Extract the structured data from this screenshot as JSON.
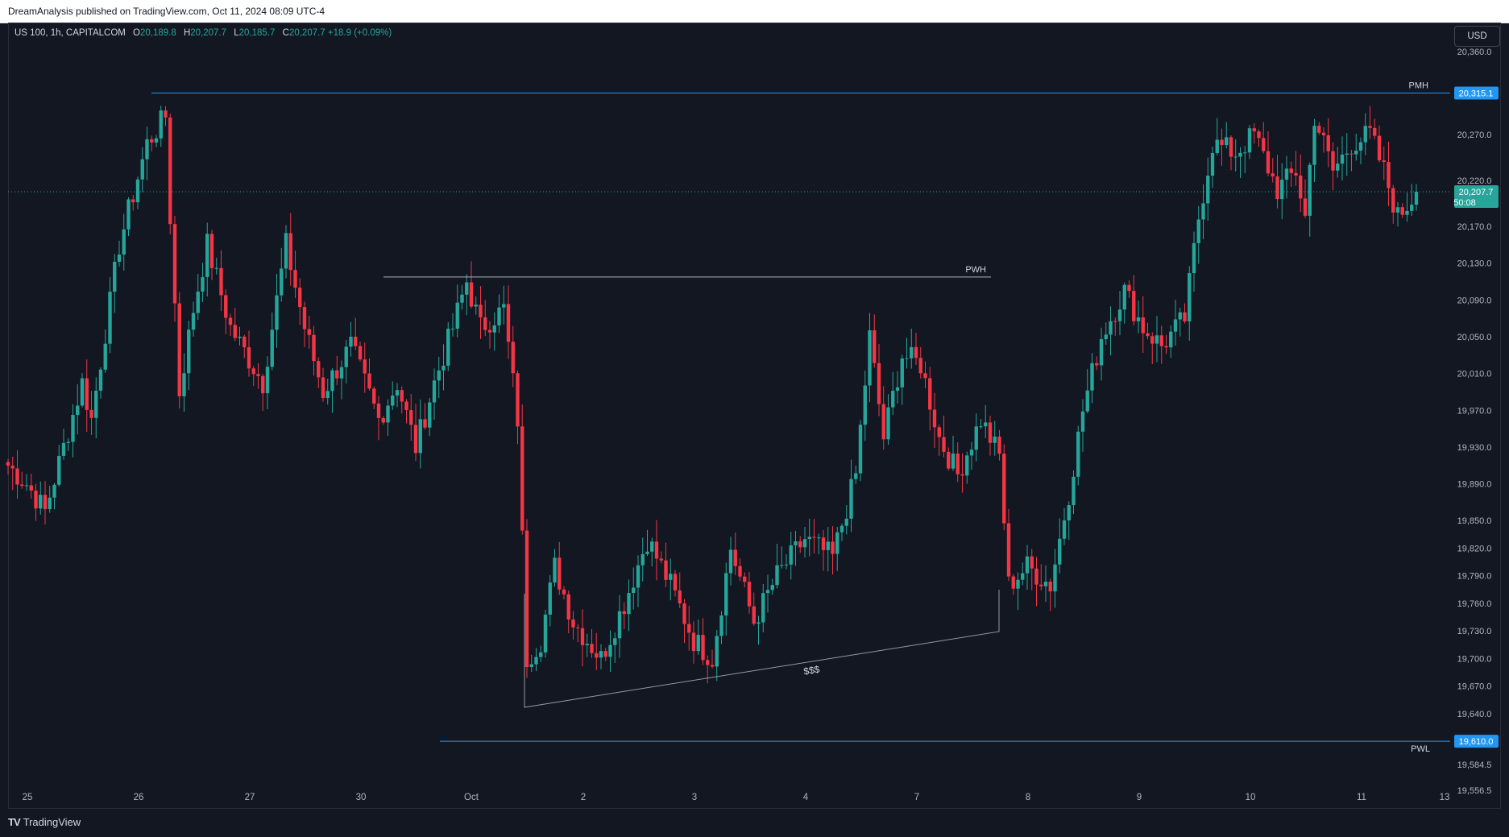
{
  "header": {
    "published": "DreamAnalysis published on TradingView.com, Oct 11, 2024 08:09 UTC-4"
  },
  "legend": {
    "symbol": "US 100, 1h, CAPITALCOM",
    "open_label": "O",
    "open": "20,189.8",
    "high_label": "H",
    "high": "20,207.7",
    "low_label": "L",
    "low": "20,185.7",
    "close_label": "C",
    "close": "20,207.7",
    "change": "+18.9 (+0.09%)"
  },
  "currency_button": "USD",
  "footer": {
    "logo_text": "TradingView",
    "logo_mark": "TV"
  },
  "colors": {
    "background": "#131722",
    "up": "#26a69a",
    "down": "#f23645",
    "level_line": "#2196f3",
    "text": "#d1d4dc"
  },
  "chart_data": {
    "type": "candlestick",
    "title": "US 100, 1h, CAPITALCOM",
    "y_range": [
      19540,
      20390
    ],
    "y_ticks": [
      "20,360.0",
      "20,270.0",
      "20,220.0",
      "20,170.0",
      "20,130.0",
      "20,090.0",
      "20,050.0",
      "20,010.0",
      "19,970.0",
      "19,930.0",
      "19,890.0",
      "19,850.0",
      "19,820.0",
      "19,790.0",
      "19,760.0",
      "19,730.0",
      "19,700.0",
      "19,670.0",
      "19,640.0",
      "19,584.5",
      "19,556.5"
    ],
    "x_labels": [
      "25",
      "26",
      "27",
      "30",
      "Oct",
      "2",
      "3",
      "4",
      "7",
      "8",
      "9",
      "10",
      "11",
      "13"
    ],
    "current_price": {
      "value": "20,207.7",
      "countdown": "50:08"
    },
    "levels": [
      {
        "label": "PMH",
        "value": "20,315.1",
        "price": 20315.1
      },
      {
        "label": "PWH",
        "price": 20115
      },
      {
        "label": "PWL",
        "value": "19,610.0",
        "price": 19610.0
      }
    ],
    "annotations": [
      {
        "text": "$$$"
      }
    ],
    "close_path": [
      {
        "i": 0,
        "c": 19910
      },
      {
        "i": 4,
        "c": 19890
      },
      {
        "i": 8,
        "c": 19860
      },
      {
        "i": 12,
        "c": 19930
      },
      {
        "i": 16,
        "c": 20000
      },
      {
        "i": 18,
        "c": 19960
      },
      {
        "i": 24,
        "c": 20150
      },
      {
        "i": 30,
        "c": 20260
      },
      {
        "i": 34,
        "c": 20290
      },
      {
        "i": 35,
        "c": 20180
      },
      {
        "i": 37,
        "c": 19990
      },
      {
        "i": 40,
        "c": 20080
      },
      {
        "i": 43,
        "c": 20150
      },
      {
        "i": 48,
        "c": 20060
      },
      {
        "i": 55,
        "c": 20000
      },
      {
        "i": 60,
        "c": 20150
      },
      {
        "i": 64,
        "c": 20060
      },
      {
        "i": 68,
        "c": 19990
      },
      {
        "i": 74,
        "c": 20040
      },
      {
        "i": 80,
        "c": 19960
      },
      {
        "i": 84,
        "c": 20000
      },
      {
        "i": 88,
        "c": 19930
      },
      {
        "i": 92,
        "c": 20000
      },
      {
        "i": 96,
        "c": 20060
      },
      {
        "i": 99,
        "c": 20110
      },
      {
        "i": 102,
        "c": 20060
      },
      {
        "i": 107,
        "c": 20080
      },
      {
        "i": 110,
        "c": 19960
      },
      {
        "i": 112,
        "c": 19700
      },
      {
        "i": 115,
        "c": 19720
      },
      {
        "i": 118,
        "c": 19800
      },
      {
        "i": 122,
        "c": 19740
      },
      {
        "i": 128,
        "c": 19700
      },
      {
        "i": 133,
        "c": 19760
      },
      {
        "i": 138,
        "c": 19830
      },
      {
        "i": 143,
        "c": 19780
      },
      {
        "i": 148,
        "c": 19720
      },
      {
        "i": 152,
        "c": 19700
      },
      {
        "i": 156,
        "c": 19820
      },
      {
        "i": 161,
        "c": 19740
      },
      {
        "i": 166,
        "c": 19790
      },
      {
        "i": 172,
        "c": 19830
      },
      {
        "i": 178,
        "c": 19810
      },
      {
        "i": 183,
        "c": 19900
      },
      {
        "i": 186,
        "c": 20050
      },
      {
        "i": 189,
        "c": 19940
      },
      {
        "i": 193,
        "c": 20030
      },
      {
        "i": 197,
        "c": 20020
      },
      {
        "i": 201,
        "c": 19940
      },
      {
        "i": 205,
        "c": 19900
      },
      {
        "i": 210,
        "c": 19960
      },
      {
        "i": 214,
        "c": 19920
      },
      {
        "i": 216,
        "c": 19780
      },
      {
        "i": 220,
        "c": 19800
      },
      {
        "i": 225,
        "c": 19780
      },
      {
        "i": 229,
        "c": 19880
      },
      {
        "i": 232,
        "c": 19970
      },
      {
        "i": 236,
        "c": 20050
      },
      {
        "i": 241,
        "c": 20100
      },
      {
        "i": 245,
        "c": 20060
      },
      {
        "i": 249,
        "c": 20040
      },
      {
        "i": 254,
        "c": 20070
      },
      {
        "i": 257,
        "c": 20180
      },
      {
        "i": 260,
        "c": 20260
      },
      {
        "i": 265,
        "c": 20250
      },
      {
        "i": 269,
        "c": 20270
      },
      {
        "i": 274,
        "c": 20210
      },
      {
        "i": 278,
        "c": 20230
      },
      {
        "i": 280,
        "c": 20180
      },
      {
        "i": 282,
        "c": 20290
      },
      {
        "i": 286,
        "c": 20230
      },
      {
        "i": 290,
        "c": 20260
      },
      {
        "i": 294,
        "c": 20270
      },
      {
        "i": 297,
        "c": 20230
      },
      {
        "i": 300,
        "c": 20180
      },
      {
        "i": 304,
        "c": 20207.7
      }
    ]
  }
}
